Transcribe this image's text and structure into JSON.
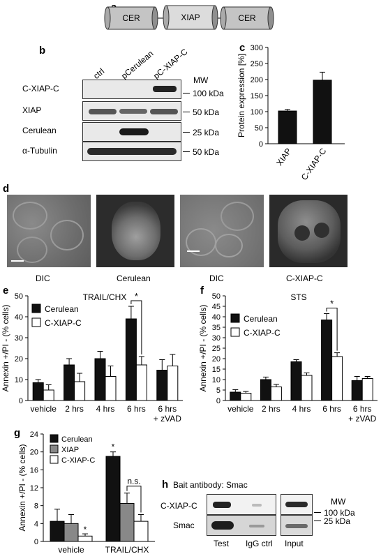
{
  "panels": {
    "a": {
      "letter": "a",
      "segments": [
        "CER",
        "XIAP",
        "CER"
      ]
    },
    "b": {
      "letter": "b",
      "lanes": [
        "ctrl",
        "pCerulean",
        "pC-XIAP-C"
      ],
      "mw_title": "MW",
      "rows": [
        {
          "label": "C-XIAP-C",
          "mw": "100 kDa"
        },
        {
          "label": "XIAP",
          "mw": "50 kDa"
        },
        {
          "label": "Cerulean",
          "mw": "25 kDa"
        },
        {
          "label": "α-Tubulin",
          "mw": "50 kDa"
        }
      ]
    },
    "c": {
      "letter": "c",
      "chart_data": {
        "type": "bar",
        "categories": [
          "XIAP",
          "C-XIAP-C"
        ],
        "values": [
          102,
          198
        ],
        "errors": [
          5,
          25
        ],
        "ylabel": "Protein expression [%]",
        "ylim": [
          0,
          300
        ],
        "yticks": [
          "0",
          "50",
          "100",
          "150",
          "200",
          "250",
          "300"
        ]
      }
    },
    "d": {
      "letter": "d",
      "captions": [
        "DIC",
        "Cerulean",
        "DIC",
        "C-XIAP-C"
      ]
    },
    "e": {
      "letter": "e",
      "chart_data": {
        "type": "bar",
        "title": "TRAIL/CHX",
        "categories": [
          "vehicle",
          "2 hrs",
          "4 hrs",
          "6 hrs",
          "6 hrs\n+ zVAD"
        ],
        "series": [
          {
            "name": "Cerulean",
            "color": "#111111",
            "values": [
              8.5,
              17,
              20,
              39,
              14.5
            ],
            "errors": [
              1.5,
              3,
              3.5,
              6,
              5
            ]
          },
          {
            "name": "C-XIAP-C",
            "color": "#ffffff",
            "values": [
              5,
              9,
              11.5,
              17,
              16.5
            ],
            "errors": [
              2.5,
              4,
              5,
              4,
              5.5
            ]
          }
        ],
        "ylabel": "Annexin +/PI - (% cells)",
        "ylim": [
          0,
          50
        ],
        "yticks": [
          "0",
          "10",
          "20",
          "30",
          "40",
          "50"
        ],
        "annotation": "*"
      }
    },
    "f": {
      "letter": "f",
      "chart_data": {
        "type": "bar",
        "title": "STS",
        "categories": [
          "vehicle",
          "2 hrs",
          "4 hrs",
          "6 hrs",
          "6 hrs\n+ zVAD"
        ],
        "series": [
          {
            "name": "Cerulean",
            "color": "#111111",
            "values": [
              4,
              10,
              18.5,
              38.5,
              9.5
            ],
            "errors": [
              1.2,
              1.2,
              1,
              3,
              2
            ]
          },
          {
            "name": "C-XIAP-C",
            "color": "#ffffff",
            "values": [
              3.5,
              6.5,
              12,
              21,
              10.5
            ],
            "errors": [
              0.8,
              1.2,
              1.2,
              1.8,
              1
            ]
          }
        ],
        "ylabel": "Annexin +/PI - (% cells)",
        "ylim": [
          0,
          50
        ],
        "yticks": [
          "0",
          "5",
          "10",
          "15",
          "20",
          "25",
          "30",
          "35",
          "40",
          "45",
          "50"
        ],
        "annotation": "*"
      }
    },
    "g": {
      "letter": "g",
      "chart_data": {
        "type": "bar",
        "categories": [
          "vehicle",
          "TRAIL/CHX"
        ],
        "series": [
          {
            "name": "Cerulean",
            "color": "#111111",
            "values": [
              4.5,
              19
            ],
            "errors": [
              2.7,
              1
            ]
          },
          {
            "name": "XIAP",
            "color": "#888888",
            "values": [
              4,
              8.5
            ],
            "errors": [
              2,
              2.3
            ]
          },
          {
            "name": "C-XIAP-C",
            "color": "#ffffff",
            "values": [
              1.2,
              4.5
            ],
            "errors": [
              0.5,
              1.5
            ]
          }
        ],
        "ylabel": "Annexin +/PI - (% cells)",
        "ylim": [
          0,
          24
        ],
        "yticks": [
          "0",
          "4",
          "8",
          "12",
          "16",
          "20",
          "24"
        ],
        "annotations": [
          "*",
          "*",
          "n.s."
        ]
      }
    },
    "h": {
      "letter": "h",
      "title": "Bait antibody: Smac",
      "rows": [
        "C-XIAP-C",
        "Smac"
      ],
      "lanes": [
        "Test",
        "IgG ctrl",
        "Input"
      ],
      "mw_title": "MW",
      "mw": [
        "100 kDa",
        "25 kDa"
      ]
    }
  }
}
